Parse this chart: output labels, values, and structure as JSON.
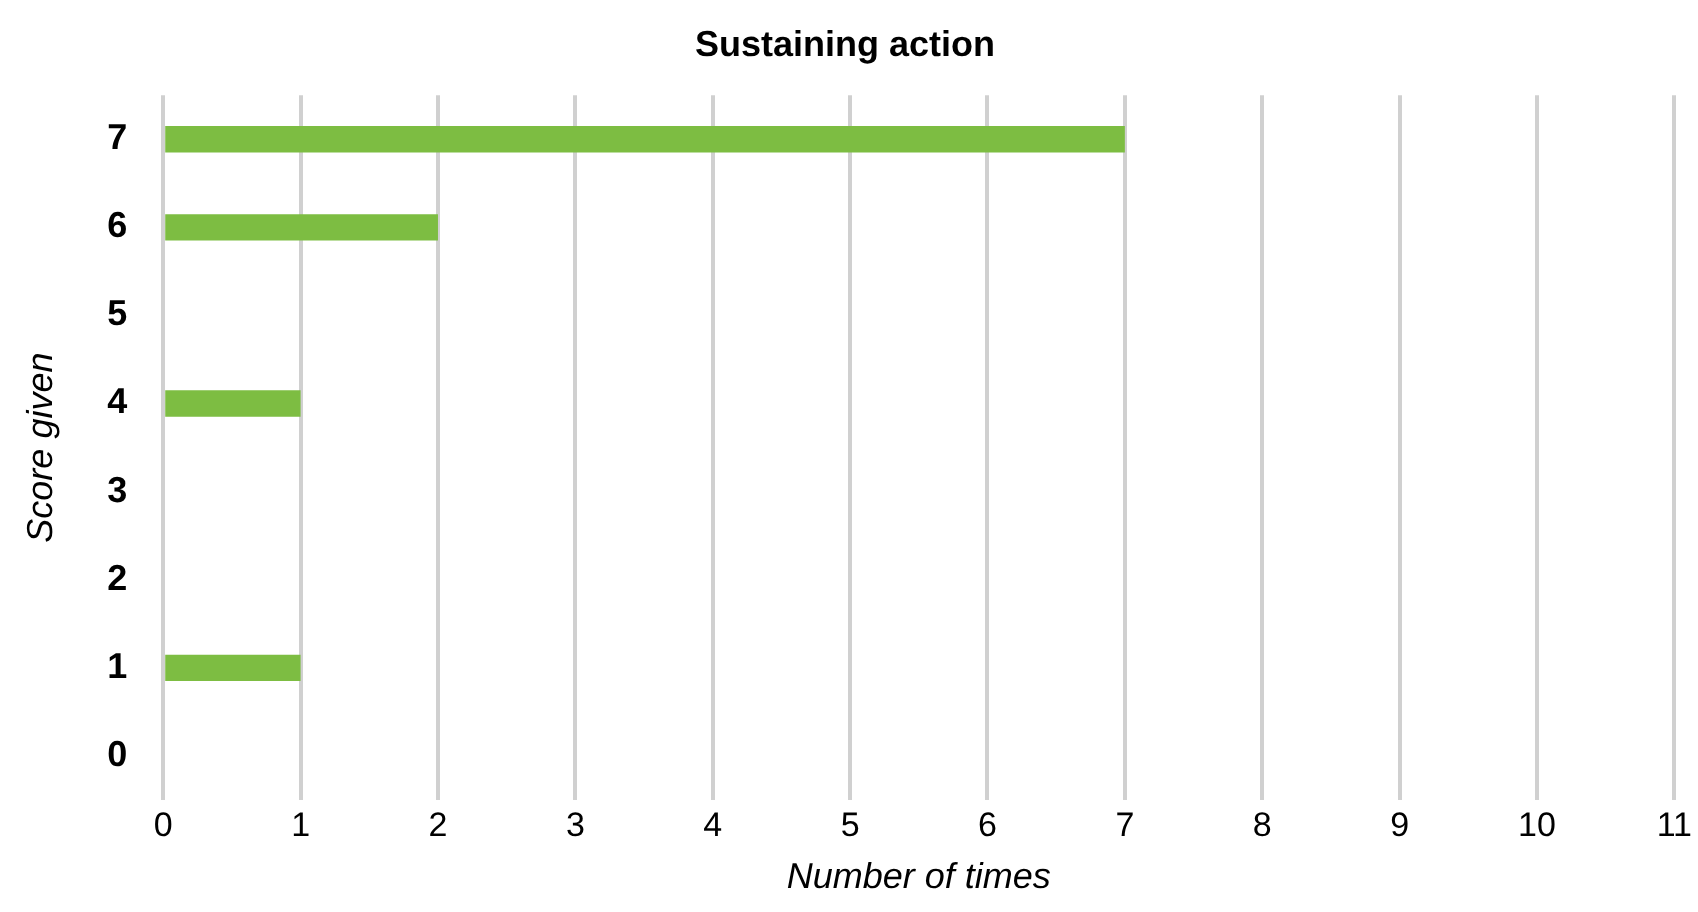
{
  "chart_data": {
    "type": "bar",
    "orientation": "horizontal",
    "title": "Sustaining action",
    "xlabel": "Number of times",
    "ylabel": "Score given",
    "categories": [
      "7",
      "6",
      "5",
      "4",
      "3",
      "2",
      "1",
      "0"
    ],
    "values": [
      7,
      2,
      0,
      1,
      0,
      0,
      1,
      0
    ],
    "color": "#7dbd42",
    "xlim": [
      0,
      11
    ],
    "xticks": [
      0,
      1,
      2,
      3,
      4,
      5,
      6,
      7,
      8,
      9,
      10,
      11
    ],
    "grid": "x",
    "legend": false
  }
}
